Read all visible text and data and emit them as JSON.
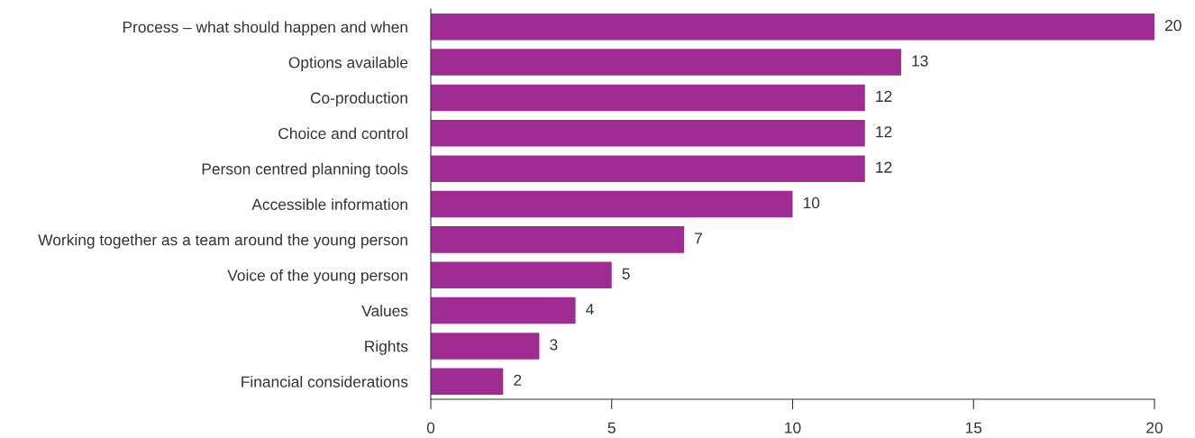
{
  "chart_data": {
    "type": "bar",
    "orientation": "horizontal",
    "categories": [
      "Process – what should happen and when",
      "Options available",
      "Co-production",
      "Choice and control",
      "Person centred planning tools",
      "Accessible information",
      "Working together as a team around the young person",
      "Voice of the young person",
      "Values",
      "Rights",
      "Financial considerations"
    ],
    "values": [
      20,
      13,
      12,
      12,
      12,
      10,
      7,
      5,
      4,
      3,
      2
    ],
    "color": "#a02b93",
    "xlim": [
      0,
      20
    ],
    "xticks": [
      0,
      5,
      10,
      15,
      20
    ],
    "data_labels": true,
    "grid": false,
    "legend": false
  }
}
